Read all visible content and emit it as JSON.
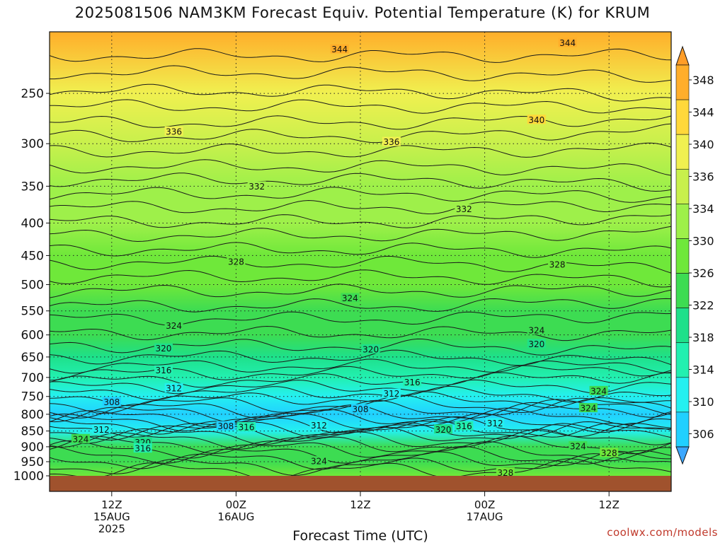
{
  "chart_data": {
    "type": "heatmap",
    "title": "2025081506 NAM3KM Forecast Equiv. Potential Temperature (K) for KRUM",
    "xlabel": "Forecast Time (UTC)",
    "ylabel": "",
    "y_scale": "log-pressure",
    "y_axis": {
      "range_hPa": [
        200,
        1000
      ],
      "ticks": [
        250,
        300,
        350,
        400,
        450,
        500,
        550,
        600,
        650,
        700,
        750,
        800,
        850,
        900,
        950,
        1000
      ]
    },
    "x_axis": {
      "range_hours_after_init": [
        0,
        60
      ],
      "ticks": [
        {
          "hour": 6,
          "lines": [
            "12Z",
            "15AUG",
            "2025"
          ]
        },
        {
          "hour": 18,
          "lines": [
            "00Z",
            "16AUG"
          ]
        },
        {
          "hour": 30,
          "lines": [
            "12Z"
          ]
        },
        {
          "hour": 42,
          "lines": [
            "00Z",
            "17AUG"
          ]
        },
        {
          "hour": 54,
          "lines": [
            "12Z"
          ]
        }
      ]
    },
    "grid": true,
    "colorbar": {
      "placement": "right",
      "levels": [
        306,
        310,
        314,
        318,
        322,
        326,
        330,
        334,
        336,
        340,
        344,
        348
      ],
      "labels": [
        "348",
        "344",
        "340",
        "336",
        "334",
        "330",
        "326",
        "322",
        "318",
        "314",
        "310",
        "306"
      ],
      "colors": [
        "#3ba7ff",
        "#21d0ff",
        "#24f0f0",
        "#22f0b0",
        "#1ee08a",
        "#3ddc52",
        "#6fe83a",
        "#9ef04a",
        "#c8f04c",
        "#f0f050",
        "#ffd83a",
        "#ffae2a",
        "#ff9d28"
      ]
    },
    "profile_levels_hPa": [
      200,
      250,
      300,
      350,
      400,
      450,
      500,
      550,
      600,
      650,
      700,
      750,
      800,
      850,
      900,
      950,
      1000
    ],
    "theta_e_profile_K": [
      346,
      338,
      335,
      333,
      331,
      329,
      326,
      324,
      322,
      320,
      316,
      311,
      308,
      310,
      322,
      325,
      326
    ],
    "contour_labels": [
      {
        "text": "344",
        "hour": 28,
        "p": 213
      },
      {
        "text": "344",
        "hour": 50,
        "p": 208
      },
      {
        "text": "340",
        "hour": 47,
        "p": 275
      },
      {
        "text": "336",
        "hour": 12,
        "p": 287
      },
      {
        "text": "336",
        "hour": 33,
        "p": 298
      },
      {
        "text": "332",
        "hour": 20,
        "p": 350
      },
      {
        "text": "332",
        "hour": 40,
        "p": 380
      },
      {
        "text": "328",
        "hour": 18,
        "p": 460
      },
      {
        "text": "328",
        "hour": 49,
        "p": 465
      },
      {
        "text": "324",
        "hour": 12,
        "p": 580
      },
      {
        "text": "324",
        "hour": 29,
        "p": 525
      },
      {
        "text": "324",
        "hour": 47,
        "p": 590
      },
      {
        "text": "324",
        "hour": 53,
        "p": 735
      },
      {
        "text": "324",
        "hour": 52,
        "p": 782
      },
      {
        "text": "324",
        "hour": 3,
        "p": 875
      },
      {
        "text": "324",
        "hour": 26,
        "p": 948
      },
      {
        "text": "320",
        "hour": 11,
        "p": 630
      },
      {
        "text": "320",
        "hour": 31,
        "p": 632
      },
      {
        "text": "320",
        "hour": 47,
        "p": 620
      },
      {
        "text": "320",
        "hour": 9,
        "p": 885
      },
      {
        "text": "320",
        "hour": 38,
        "p": 845
      },
      {
        "text": "316",
        "hour": 11,
        "p": 682
      },
      {
        "text": "316",
        "hour": 35,
        "p": 712
      },
      {
        "text": "316",
        "hour": 19,
        "p": 838
      },
      {
        "text": "316",
        "hour": 40,
        "p": 835
      },
      {
        "text": "316",
        "hour": 9,
        "p": 905
      },
      {
        "text": "312",
        "hour": 12,
        "p": 728
      },
      {
        "text": "312",
        "hour": 33,
        "p": 742
      },
      {
        "text": "312",
        "hour": 5,
        "p": 845
      },
      {
        "text": "312",
        "hour": 26,
        "p": 833
      },
      {
        "text": "312",
        "hour": 43,
        "p": 826
      },
      {
        "text": "308",
        "hour": 6,
        "p": 765
      },
      {
        "text": "308",
        "hour": 30,
        "p": 785
      },
      {
        "text": "308",
        "hour": 17,
        "p": 835
      },
      {
        "text": "324",
        "hour": 51,
        "p": 898
      },
      {
        "text": "328",
        "hour": 54,
        "p": 920
      },
      {
        "text": "328",
        "hour": 44,
        "p": 988
      }
    ]
  },
  "credit": "coolwx.com/models"
}
